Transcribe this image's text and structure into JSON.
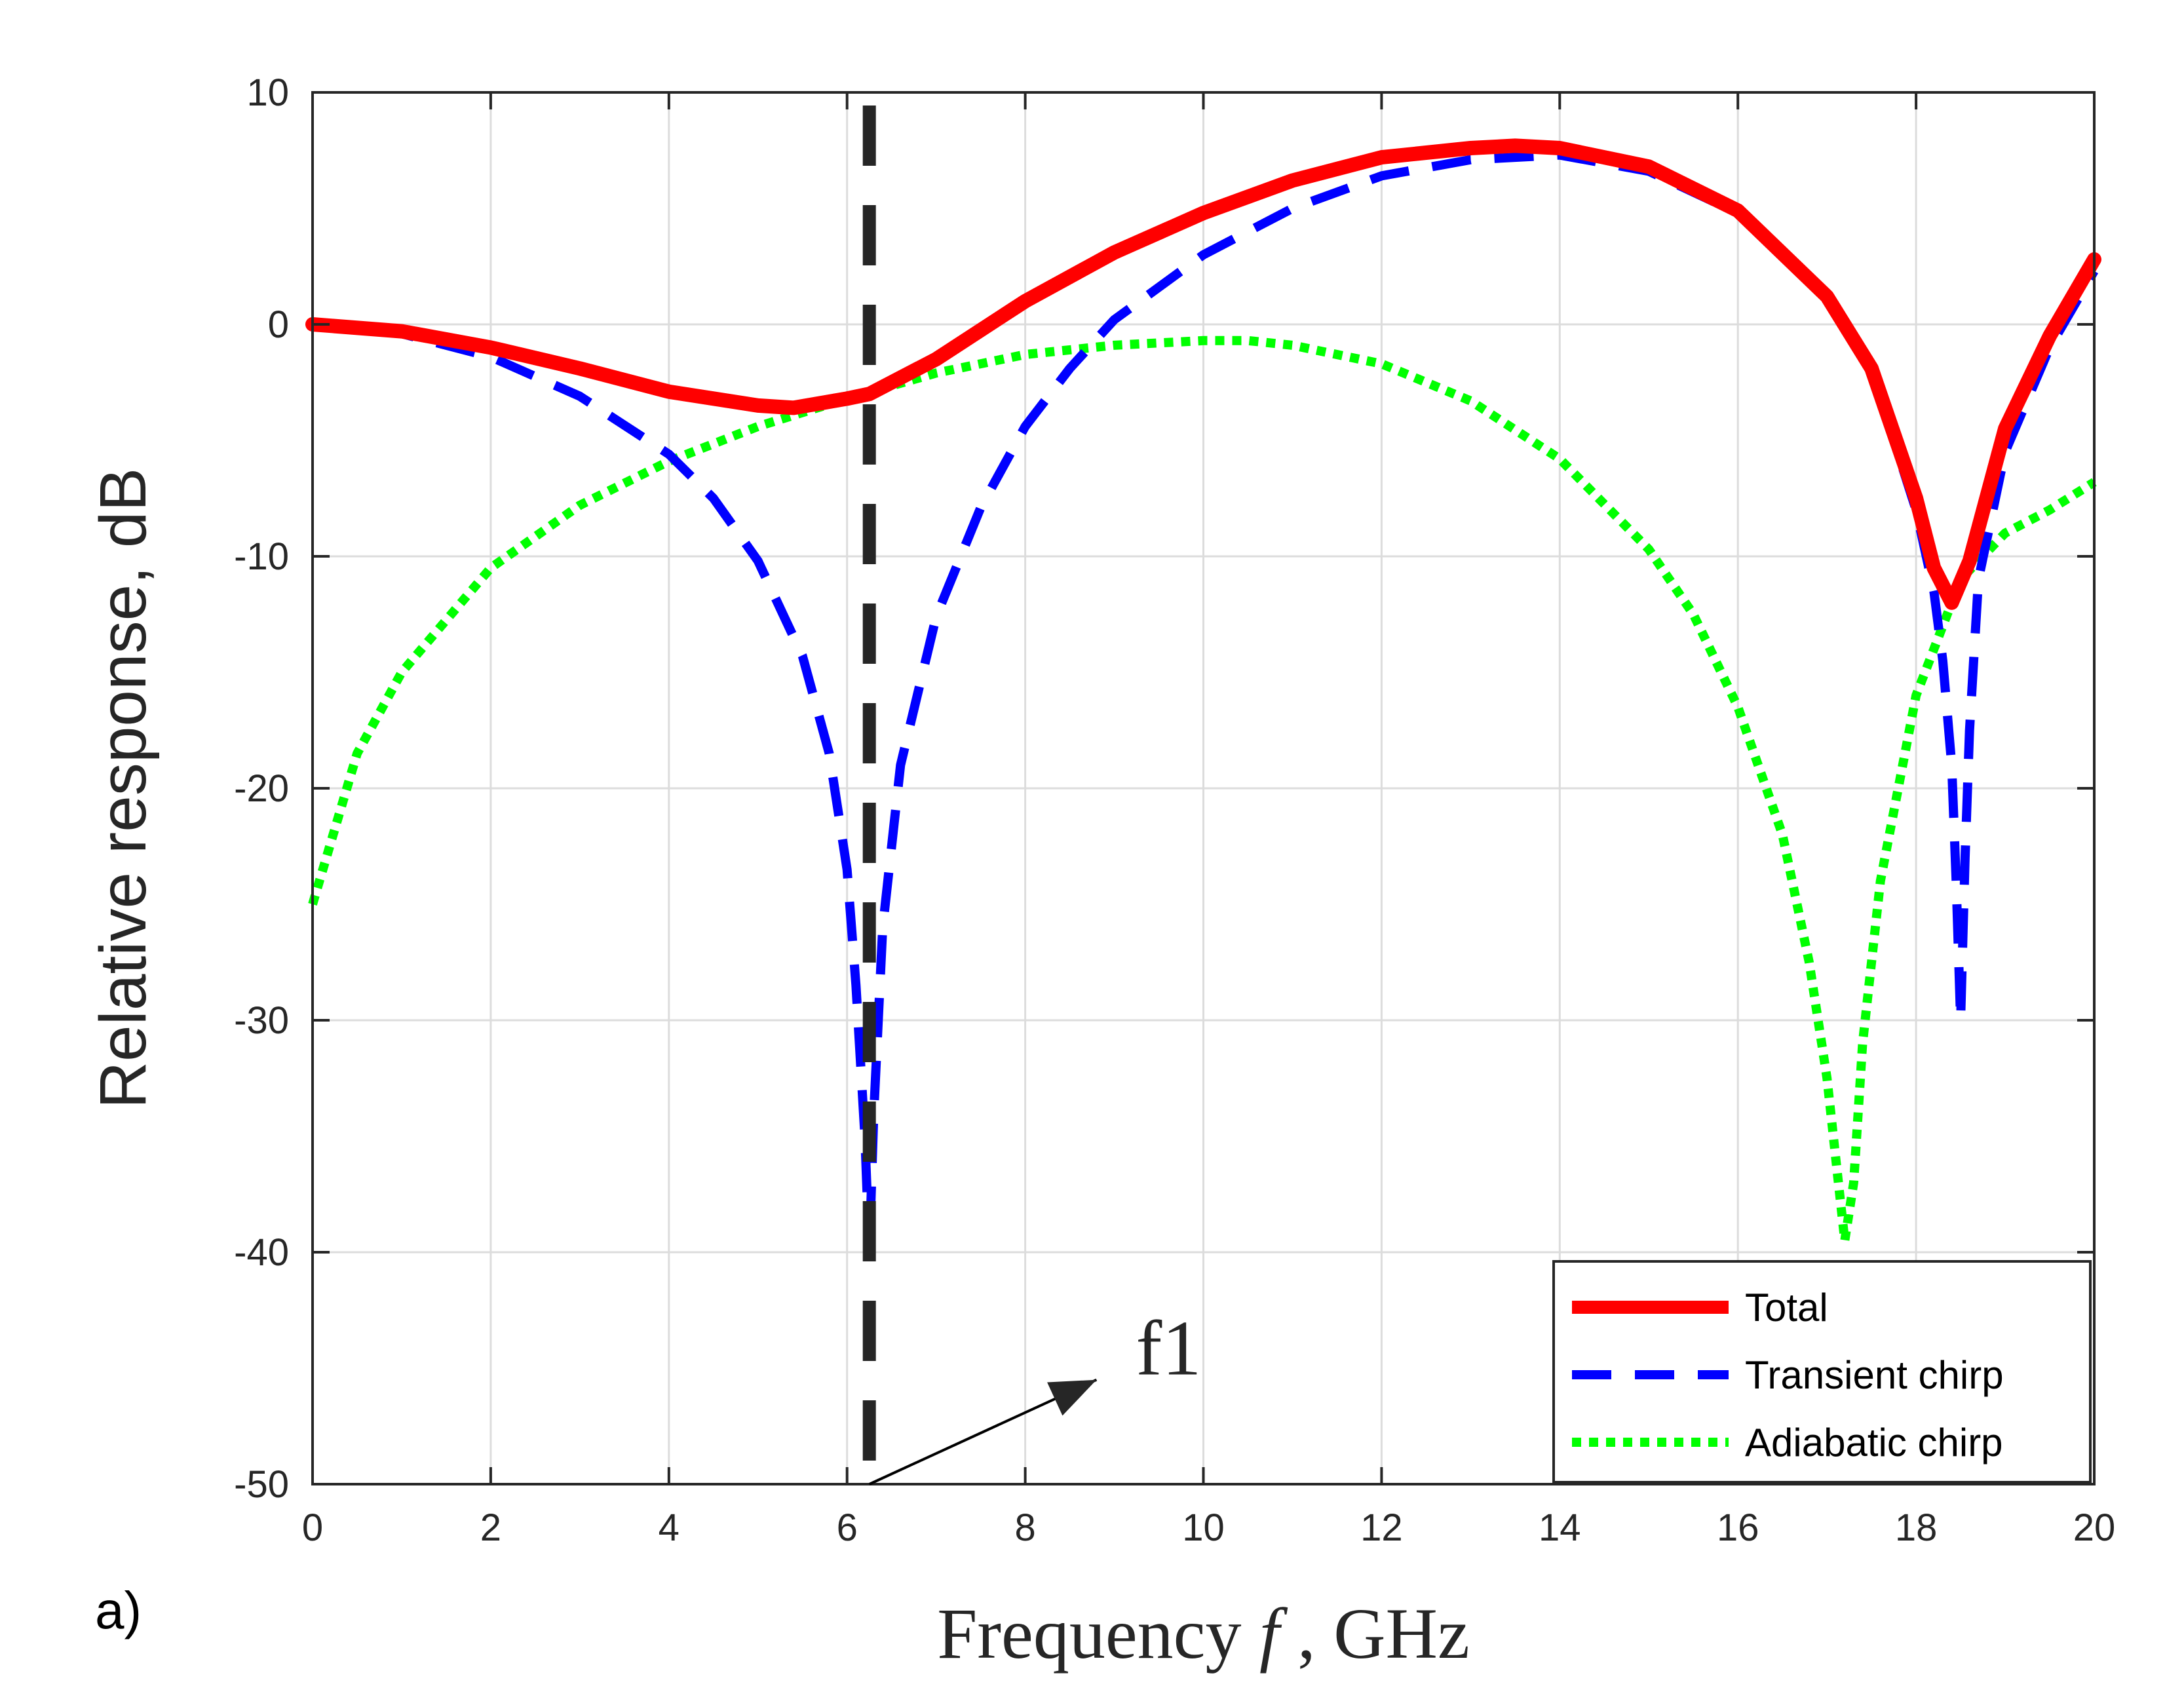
{
  "chart_data": {
    "type": "line",
    "title": "",
    "xlabel": "Frequency",
    "xlabel_var": "f",
    "xlabel_unit": ", GHz",
    "ylabel": "Relative response, dB",
    "panel_label": "a)",
    "xlim": [
      0,
      20
    ],
    "ylim": [
      -50,
      10
    ],
    "xticks": [
      0,
      2,
      4,
      6,
      8,
      10,
      12,
      14,
      16,
      18,
      20
    ],
    "yticks": [
      10,
      0,
      -10,
      -20,
      -30,
      -40,
      -50
    ],
    "xtick_labels": [
      "0",
      "2",
      "4",
      "6",
      "8",
      "10",
      "12",
      "14",
      "16",
      "18",
      "20"
    ],
    "ytick_labels": [
      "10",
      "0",
      "-10",
      "-20",
      "-30",
      "-40",
      "-50"
    ],
    "grid": true,
    "legend_position": "bottom-right",
    "series": [
      {
        "name": "Total",
        "color": "#ff0000",
        "style": "solid",
        "x": [
          0,
          1,
          2,
          3,
          4,
          5,
          5.4,
          6,
          6.25,
          7,
          8,
          9,
          10,
          11,
          12,
          13,
          13.5,
          14,
          15,
          16,
          17,
          17.5,
          18,
          18.2,
          18.4,
          18.6,
          19,
          19.5,
          20
        ],
        "y": [
          0,
          -0.3,
          -1,
          -1.9,
          -2.9,
          -3.5,
          -3.6,
          -3.2,
          -3.0,
          -1.5,
          1.0,
          3.1,
          4.8,
          6.2,
          7.2,
          7.6,
          7.7,
          7.6,
          6.8,
          4.9,
          1.2,
          -1.9,
          -7.5,
          -10.5,
          -12.0,
          -10.2,
          -4.5,
          -0.5,
          2.8
        ]
      },
      {
        "name": "Transient chirp",
        "color": "#0000ff",
        "style": "dashed",
        "x": [
          0,
          1,
          2,
          3,
          4,
          4.5,
          5,
          5.5,
          5.8,
          6.0,
          6.1,
          6.2,
          6.25,
          6.3,
          6.4,
          6.6,
          7,
          7.5,
          8,
          8.5,
          9,
          10,
          11,
          12,
          13,
          14,
          15,
          16,
          17,
          17.5,
          18,
          18.2,
          18.3,
          18.4,
          18.45,
          18.5,
          18.55,
          18.6,
          18.7,
          19,
          19.5,
          20
        ],
        "y": [
          0,
          -0.4,
          -1.4,
          -3.1,
          -5.6,
          -7.5,
          -10.2,
          -14.3,
          -18.5,
          -23.5,
          -28.5,
          -35,
          -40,
          -34,
          -26,
          -19,
          -12.6,
          -7.9,
          -4.4,
          -1.9,
          0.2,
          3.0,
          5.0,
          6.4,
          7.1,
          7.3,
          6.6,
          4.8,
          1.2,
          -2.0,
          -8.0,
          -11.5,
          -14.5,
          -19,
          -24,
          -30,
          -23,
          -17.5,
          -11.0,
          -5.5,
          -1.0,
          2.3
        ]
      },
      {
        "name": "Adiabatic chirp",
        "color": "#00ff00",
        "style": "dotted",
        "x": [
          0,
          0.5,
          1,
          2,
          3,
          4,
          5,
          6,
          7,
          8,
          9,
          10,
          10.5,
          11,
          12,
          13,
          14,
          15,
          15.5,
          16,
          16.5,
          16.8,
          17,
          17.1,
          17.2,
          17.3,
          17.4,
          17.6,
          18,
          18.5,
          19,
          19.5,
          20
        ],
        "y": [
          -25,
          -18.5,
          -15,
          -10.5,
          -7.8,
          -5.9,
          -4.4,
          -3.2,
          -2.1,
          -1.3,
          -0.9,
          -0.7,
          -0.7,
          -0.9,
          -1.7,
          -3.3,
          -5.8,
          -9.7,
          -12.5,
          -16.5,
          -22,
          -27.5,
          -32.5,
          -36,
          -39.5,
          -37,
          -31,
          -24,
          -16,
          -11,
          -9,
          -8,
          -6.8
        ]
      }
    ],
    "vertical_marker": {
      "x": 6.25,
      "color": "#262626",
      "style": "dashed"
    },
    "annotation": {
      "text": "f1",
      "arrow_from": [
        6.25,
        -50
      ],
      "arrow_to": [
        8.8,
        -45.5
      ]
    }
  }
}
